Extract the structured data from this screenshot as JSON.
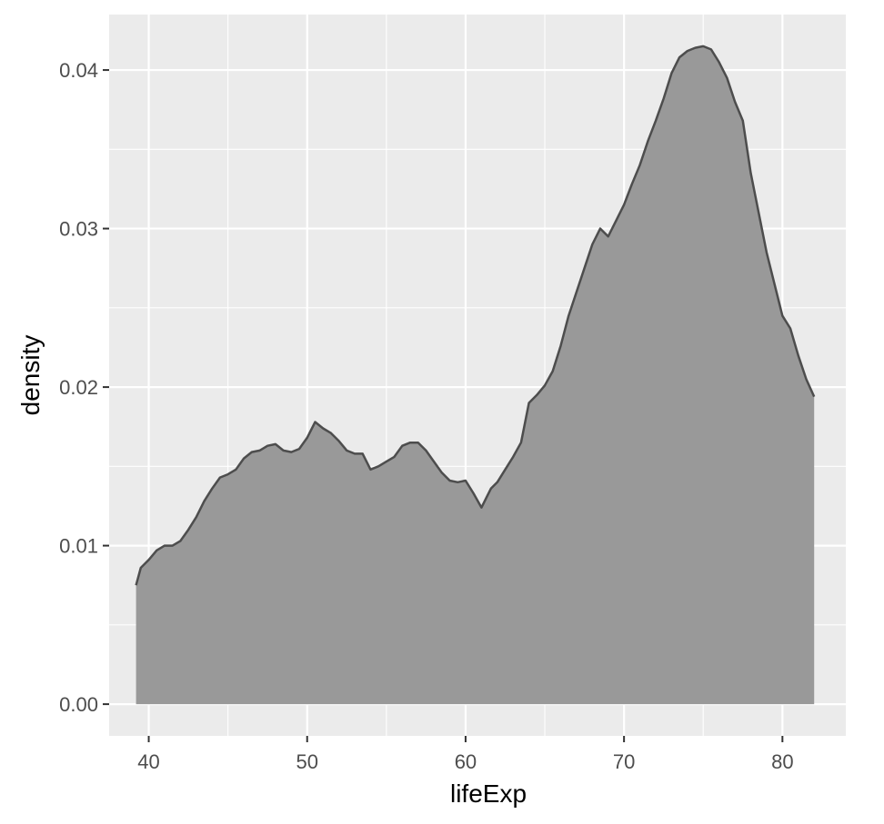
{
  "chart_data": {
    "type": "area",
    "xlabel": "lifeExp",
    "ylabel": "density",
    "xlim": [
      37.5,
      84.0
    ],
    "ylim": [
      -0.002,
      0.0435
    ],
    "x_ticks": [
      40,
      50,
      60,
      70,
      80
    ],
    "x_tick_labels": [
      "40",
      "50",
      "60",
      "70",
      "80"
    ],
    "y_ticks": [
      0.0,
      0.01,
      0.02,
      0.03,
      0.04
    ],
    "y_tick_labels": [
      "0.00",
      "0.01",
      "0.02",
      "0.03",
      "0.04"
    ],
    "grid": true,
    "colors": {
      "panel": "#ebebeb",
      "grid": "#ffffff",
      "fill": "#999999",
      "outline": "#4d4d4d"
    },
    "x": [
      39.2,
      39.5,
      40.0,
      40.5,
      41.0,
      41.5,
      42.0,
      42.5,
      43.0,
      43.5,
      44.0,
      44.5,
      45.0,
      45.5,
      46.0,
      46.5,
      47.0,
      47.5,
      48.0,
      48.5,
      49.0,
      49.5,
      50.0,
      50.5,
      51.0,
      51.5,
      52.0,
      52.5,
      53.0,
      53.5,
      54.0,
      54.5,
      55.0,
      55.5,
      56.0,
      56.5,
      57.0,
      57.5,
      58.0,
      58.5,
      59.0,
      59.5,
      60.0,
      60.5,
      61.0,
      61.3,
      61.6,
      62.0,
      62.5,
      63.0,
      63.5,
      64.0,
      64.5,
      65.0,
      65.5,
      66.0,
      66.5,
      67.0,
      67.5,
      68.0,
      68.5,
      69.0,
      69.5,
      70.0,
      70.5,
      71.0,
      71.5,
      72.0,
      72.5,
      73.0,
      73.5,
      74.0,
      74.5,
      75.0,
      75.5,
      76.0,
      76.5,
      77.0,
      77.5,
      78.0,
      78.5,
      79.0,
      79.5,
      80.0,
      80.5,
      81.0,
      81.5,
      82.0
    ],
    "y": [
      0.0075,
      0.0086,
      0.0091,
      0.0097,
      0.01,
      0.01,
      0.0103,
      0.011,
      0.0118,
      0.0128,
      0.0136,
      0.0143,
      0.0145,
      0.0148,
      0.0155,
      0.0159,
      0.016,
      0.0163,
      0.0164,
      0.016,
      0.0159,
      0.0161,
      0.0168,
      0.0178,
      0.0174,
      0.0171,
      0.0166,
      0.016,
      0.0158,
      0.0158,
      0.0148,
      0.015,
      0.0153,
      0.0156,
      0.0163,
      0.0165,
      0.0165,
      0.016,
      0.0153,
      0.0146,
      0.0141,
      0.014,
      0.0141,
      0.0133,
      0.0124,
      0.013,
      0.0136,
      0.014,
      0.0148,
      0.0156,
      0.0165,
      0.019,
      0.0195,
      0.0201,
      0.021,
      0.0226,
      0.0245,
      0.026,
      0.0275,
      0.029,
      0.03,
      0.0295,
      0.0305,
      0.0315,
      0.0328,
      0.034,
      0.0355,
      0.0368,
      0.0382,
      0.0398,
      0.0408,
      0.0412,
      0.0414,
      0.0415,
      0.0413,
      0.0405,
      0.0395,
      0.038,
      0.0368,
      0.0335,
      0.031,
      0.0285,
      0.0265,
      0.0245,
      0.0237,
      0.022,
      0.0205,
      0.0194
    ]
  }
}
